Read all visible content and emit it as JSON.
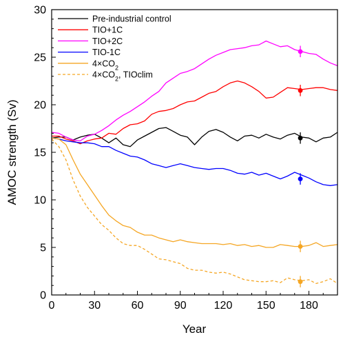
{
  "chart_data": {
    "type": "line",
    "title": "",
    "xlabel": "Year",
    "ylabel": "AMOC strength (Sv)",
    "xlim": [
      0,
      200
    ],
    "ylim": [
      0,
      30
    ],
    "xticks": [
      0,
      30,
      60,
      90,
      120,
      150,
      180
    ],
    "yticks": [
      0,
      5,
      10,
      15,
      20,
      25,
      30
    ],
    "grid": false,
    "legend_position": "top-left",
    "series": [
      {
        "name": "Pre-industrial control",
        "color": "#000000",
        "dash": "solid",
        "x": [
          0,
          5,
          10,
          15,
          20,
          25,
          30,
          35,
          40,
          45,
          50,
          55,
          60,
          65,
          70,
          75,
          80,
          85,
          90,
          95,
          100,
          105,
          110,
          115,
          120,
          125,
          130,
          135,
          140,
          145,
          150,
          155,
          160,
          165,
          170,
          175,
          180,
          185,
          190,
          195,
          200
        ],
        "y": [
          16.5,
          16.6,
          16.6,
          16.3,
          16.6,
          16.8,
          16.9,
          16.5,
          16.0,
          16.5,
          15.8,
          15.6,
          16.3,
          16.7,
          17.1,
          17.5,
          17.6,
          17.2,
          16.8,
          16.6,
          15.8,
          16.6,
          17.2,
          17.4,
          17.1,
          16.6,
          16.2,
          16.7,
          16.8,
          16.5,
          16.9,
          16.6,
          16.4,
          16.8,
          17.0,
          16.6,
          16.5,
          16.1,
          16.5,
          16.6,
          17.1
        ]
      },
      {
        "name": "TIO+1C",
        "color": "#ff0000",
        "dash": "solid",
        "x": [
          0,
          5,
          10,
          15,
          20,
          25,
          30,
          35,
          40,
          45,
          50,
          55,
          60,
          65,
          70,
          75,
          80,
          85,
          90,
          95,
          100,
          105,
          110,
          115,
          120,
          125,
          130,
          135,
          140,
          145,
          150,
          155,
          160,
          165,
          170,
          175,
          180,
          185,
          190,
          195,
          200
        ],
        "y": [
          16.7,
          16.7,
          16.4,
          16.2,
          15.9,
          16.2,
          16.4,
          16.5,
          17.0,
          16.9,
          17.5,
          17.9,
          18.0,
          18.3,
          19.0,
          19.3,
          19.4,
          19.6,
          20.0,
          20.3,
          20.4,
          20.8,
          21.2,
          21.4,
          21.9,
          22.3,
          22.5,
          22.3,
          21.9,
          21.4,
          20.7,
          20.8,
          21.3,
          21.8,
          21.7,
          21.6,
          21.7,
          21.8,
          21.8,
          21.6,
          21.5
        ]
      },
      {
        "name": "TIO+2C",
        "color": "#ff00ff",
        "dash": "solid",
        "x": [
          0,
          5,
          10,
          15,
          20,
          25,
          30,
          35,
          40,
          45,
          50,
          55,
          60,
          65,
          70,
          75,
          80,
          85,
          90,
          95,
          100,
          105,
          110,
          115,
          120,
          125,
          130,
          135,
          140,
          145,
          150,
          155,
          160,
          165,
          170,
          175,
          180,
          185,
          190,
          195,
          200
        ],
        "y": [
          17.1,
          17.0,
          16.6,
          16.3,
          16.2,
          16.7,
          16.9,
          17.3,
          17.8,
          18.4,
          18.9,
          19.3,
          19.8,
          20.3,
          20.9,
          21.4,
          22.3,
          22.8,
          23.3,
          23.5,
          23.8,
          24.3,
          24.8,
          25.2,
          25.5,
          25.8,
          25.9,
          26.0,
          26.2,
          26.3,
          26.7,
          26.4,
          26.1,
          26.2,
          25.8,
          25.6,
          25.4,
          25.3,
          24.8,
          24.4,
          24.1
        ]
      },
      {
        "name": "TIO-1C",
        "color": "#0000ff",
        "dash": "solid",
        "x": [
          0,
          5,
          10,
          15,
          20,
          25,
          30,
          35,
          40,
          45,
          50,
          55,
          60,
          65,
          70,
          75,
          80,
          85,
          90,
          95,
          100,
          105,
          110,
          115,
          120,
          125,
          130,
          135,
          140,
          145,
          150,
          155,
          160,
          165,
          170,
          175,
          180,
          185,
          190,
          195,
          200
        ],
        "y": [
          16.5,
          16.4,
          16.2,
          16.1,
          16.0,
          16.0,
          15.9,
          15.6,
          15.6,
          15.2,
          14.9,
          14.6,
          14.5,
          14.2,
          13.8,
          13.6,
          13.4,
          13.6,
          13.8,
          13.6,
          13.4,
          13.3,
          13.2,
          13.3,
          13.3,
          13.1,
          12.8,
          12.7,
          12.9,
          12.6,
          12.8,
          12.5,
          12.2,
          12.5,
          12.9,
          12.6,
          12.3,
          11.9,
          11.6,
          11.5,
          11.6
        ]
      },
      {
        "name": "4×CO2",
        "color": "#f5a623",
        "dash": "solid",
        "x": [
          0,
          5,
          10,
          15,
          20,
          25,
          30,
          35,
          40,
          45,
          50,
          55,
          60,
          65,
          70,
          75,
          80,
          85,
          90,
          95,
          100,
          105,
          110,
          115,
          120,
          125,
          130,
          135,
          140,
          145,
          150,
          155,
          160,
          165,
          170,
          175,
          180,
          185,
          190,
          195,
          200
        ],
        "y": [
          16.5,
          16.4,
          15.8,
          14.2,
          12.7,
          11.6,
          10.5,
          9.4,
          8.4,
          7.8,
          7.3,
          7.1,
          6.6,
          6.3,
          6.3,
          6.0,
          5.8,
          5.6,
          5.8,
          5.6,
          5.5,
          5.4,
          5.4,
          5.4,
          5.3,
          5.4,
          5.2,
          5.3,
          5.1,
          5.2,
          5.0,
          5.0,
          5.3,
          5.2,
          5.1,
          5.1,
          5.2,
          5.5,
          5.1,
          5.2,
          5.3
        ]
      },
      {
        "name": "4×CO2, TIOclim",
        "color": "#f5a623",
        "dash": "dashed",
        "x": [
          0,
          5,
          10,
          15,
          20,
          25,
          30,
          35,
          40,
          45,
          50,
          55,
          60,
          65,
          70,
          75,
          80,
          85,
          90,
          95,
          100,
          105,
          110,
          115,
          120,
          125,
          130,
          135,
          140,
          145,
          150,
          155,
          160,
          165,
          170,
          175,
          180,
          185,
          190,
          195,
          200
        ],
        "y": [
          16.4,
          15.6,
          14.2,
          12.1,
          10.4,
          9.2,
          8.3,
          7.4,
          6.8,
          6.0,
          5.4,
          5.2,
          5.2,
          4.8,
          4.3,
          3.8,
          3.7,
          3.5,
          3.3,
          2.8,
          2.6,
          2.6,
          2.4,
          2.3,
          2.4,
          2.2,
          1.9,
          1.6,
          1.5,
          1.4,
          1.4,
          1.5,
          1.3,
          1.8,
          1.6,
          1.5,
          1.6,
          1.2,
          1.4,
          1.7,
          1.2
        ]
      }
    ],
    "markers": [
      {
        "series": "Pre-industrial control",
        "x": 174,
        "y": 16.5,
        "err": 0.6,
        "color": "#000000"
      },
      {
        "series": "TIO+1C",
        "x": 174,
        "y": 21.5,
        "err": 0.6,
        "color": "#ff0000"
      },
      {
        "series": "TIO+2C",
        "x": 174,
        "y": 25.6,
        "err": 0.6,
        "color": "#ff00ff"
      },
      {
        "series": "TIO-1C",
        "x": 174,
        "y": 12.2,
        "err": 0.6,
        "color": "#0000ff"
      },
      {
        "series": "4×CO2",
        "x": 174,
        "y": 5.1,
        "err": 0.6,
        "color": "#f5a623"
      },
      {
        "series": "4×CO2, TIOclim",
        "x": 174,
        "y": 1.4,
        "err": 0.6,
        "color": "#f5a623"
      }
    ],
    "legend": [
      {
        "label": "Pre-industrial control",
        "color": "#000000",
        "dash": "solid"
      },
      {
        "label": "TIO+1C",
        "color": "#ff0000",
        "dash": "solid"
      },
      {
        "label": "TIO+2C",
        "color": "#ff00ff",
        "dash": "solid"
      },
      {
        "label": "TIO-1C",
        "color": "#0000ff",
        "dash": "solid"
      },
      {
        "label": "4×CO2",
        "color": "#f5a623",
        "dash": "solid"
      },
      {
        "label": "4×CO2, TIOclim",
        "color": "#f5a623",
        "dash": "dashed"
      }
    ]
  }
}
